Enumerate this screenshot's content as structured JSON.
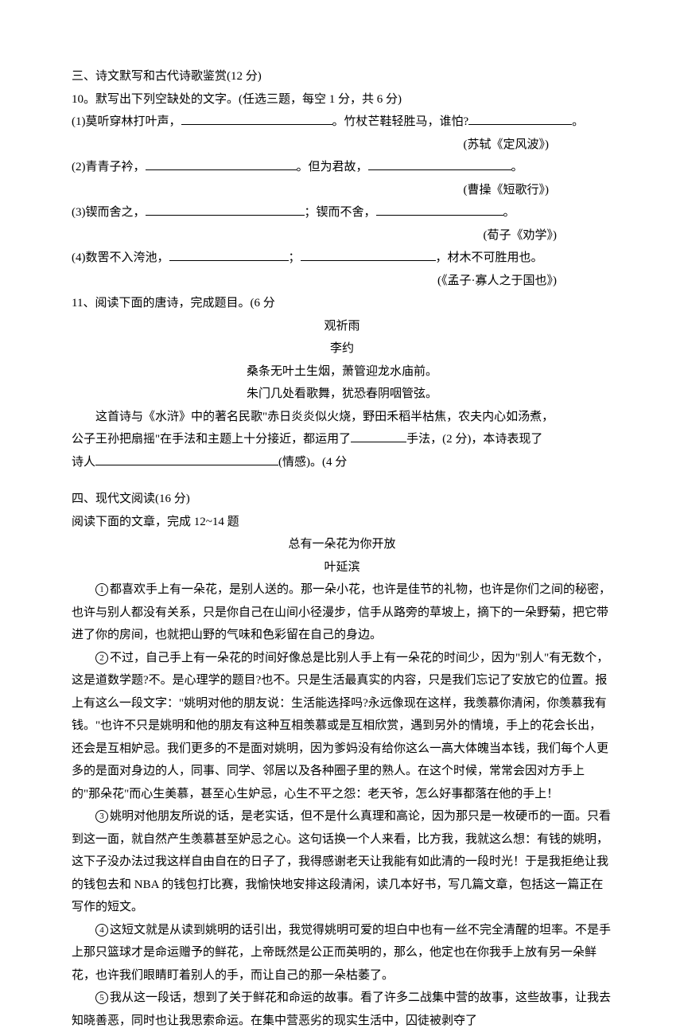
{
  "section3": {
    "title": "三、诗文默写和古代诗歌鉴赏(12 分)",
    "q10": {
      "stem": "10。默写出下列空缺处的文字。(任选三题，每空 1 分，共 6 分)",
      "i1_a": "(1)莫听穿林打叶声，",
      "i1_b": "。竹杖芒鞋轻胜马，谁怕?",
      "i1_c": "。",
      "i1_src": "(苏轼《定风波》)",
      "i2_a": "(2)青青子衿，",
      "i2_b": "。但为君故，",
      "i2_c": "。",
      "i2_src": "(曹操《短歌行》)",
      "i3_a": "(3)锲而舍之，",
      "i3_b": "；锲而不舍，",
      "i3_c": "。",
      "i3_src": "(荀子《劝学》)",
      "i4_a": "(4)数罟不入洿池，",
      "i4_b": "；",
      "i4_c": "，材木不可胜用也。",
      "i4_src": "(《孟子·寡人之于国也》)"
    },
    "q11": {
      "stem": "11、阅读下面的唐诗，完成题目。(6 分",
      "poem_title": "观祈雨",
      "poem_author": "李约",
      "line1": "桑条无叶土生烟，萧管迎龙水庙前。",
      "line2": "朱门几处看歌舞，犹恐春阴咽管弦。",
      "para_a": "这首诗与《水浒》中的著名民歌\"赤日炎炎似火烧，野田禾稻半枯焦，农夫内心如汤煮，",
      "para_b": "公子王孙把扇摇\"在手法和主题上十分接近，都运用了",
      "para_c": "手法，(2 分)，本诗表现了",
      "para_d": "诗人",
      "para_e": "(情感)。(4 分"
    }
  },
  "section4": {
    "title": "四、现代文阅读(16 分)",
    "instruction": "阅读下面的文章，完成 12~14 题",
    "essay_title": "总有一朵花为你开放",
    "essay_author": "叶延滨",
    "p1": "都喜欢手上有一朵花，是别人送的。那一朵小花，也许是佳节的礼物，也许是你们之间的秘密，也许与别人都没有关系，只是你自己在山间小径漫步，信手从路旁的草坡上，摘下的一朵野菊，把它带进了你的房间，也就把山野的气味和色彩留在自己的身边。",
    "p2": "不过，自己手上有一朵花的时间好像总是比别人手上有一朵花的时间少，因为\"别人\"有无数个，这是道数学题?不。是心理学的题目?也不。只是生活最真实的内容，只是我们忘记了安放它的位置。报上有这么一段文字：\"姚明对他的朋友说：生活能选择吗?永远像现在这样，我羡慕你清闲，你羡慕我有钱。\"也许不只是姚明和他的朋友有这种互相羡慕或是互相欣赏，遇到另外的情境，手上的花会长出，还会是互相妒忌。我们更多的不是面对姚明，因为爹妈没有给你这么一高大体魄当本钱，我们每个人更多的是面对身边的人，同事、同学、邻居以及各种圈子里的熟人。在这个时候，常常会因对方手上的\"那朵花\"而心生美慕，甚至心生妒忌，心生不平之怨：老天爷，怎么好事都落在他的手上！",
    "p3": "姚明对他朋友所说的话，是老实话，但不是什么真理和高论，因为那只是一枚硬币的一面。只看到这一面，就自然产生羡慕甚至妒忌之心。这句话换一个人来看，比方我，我就这么想：有钱的姚明，这下子没办法过我这样自由自在的日子了，我得感谢老天让我能有如此清的一段时光！于是我拒绝让我的钱包去和 NBA 的钱包打比赛，我愉快地安排这段清闲，读几本好书，写几篇文章，包括这一篇正在写作的短文。",
    "p4": "这短文就是从读到姚明的话引出，我觉得姚明可爱的坦白中也有一丝不完全清醒的坦率。不是手上那只篮球才是命运赠予的鲜花，上帝既然是公正而英明的，那么，他定也在你我手上放有另一朵鲜花，也许我们眼睛盯着别人的手，而让自己的那一朵枯萎了。",
    "p5": "我从这一段话，想到了关于鲜花和命运的故事。看了许多二战集中营的故事，这些故事，让我去知晓善恶，同时也让我思索命运。在集中营恶劣的现实生活中，囚徒被剥夺了"
  },
  "blanks": {
    "w190": 190,
    "w150": 150,
    "w170": 170,
    "w180": 180,
    "w200": 200,
    "w160": 160,
    "w130": 130,
    "w70": 70,
    "w230": 230
  }
}
